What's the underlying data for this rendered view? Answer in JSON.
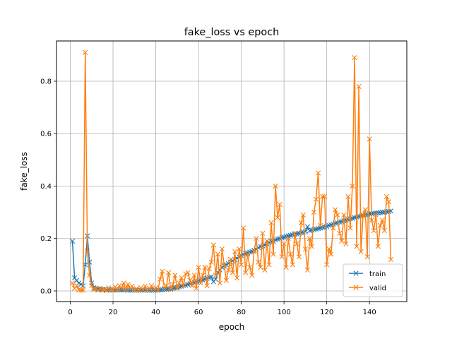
{
  "chart_data": {
    "type": "line",
    "title": "fake_loss vs epoch",
    "xlabel": "epoch",
    "ylabel": "fake_loss",
    "xlim": [
      -6.45,
      157.45
    ],
    "ylim": [
      -0.0405,
      0.9535
    ],
    "xticks": [
      0,
      20,
      40,
      60,
      80,
      100,
      120,
      140
    ],
    "yticks": [
      0.0,
      0.2,
      0.4,
      0.6,
      0.8
    ],
    "ytick_labels": [
      "0.0",
      "0.2",
      "0.4",
      "0.6",
      "0.8"
    ],
    "grid": true,
    "legend_position": "lower-right",
    "marker": "x",
    "series": [
      {
        "name": "train",
        "color": "#1f77b4",
        "x": [
          1,
          2,
          3,
          4,
          5,
          6,
          7,
          8,
          9,
          10,
          11,
          12,
          13,
          14,
          15,
          16,
          17,
          18,
          19,
          20,
          21,
          22,
          23,
          24,
          25,
          26,
          27,
          28,
          29,
          30,
          31,
          32,
          33,
          34,
          35,
          36,
          37,
          38,
          39,
          40,
          41,
          42,
          43,
          44,
          45,
          46,
          47,
          48,
          49,
          50,
          51,
          52,
          53,
          54,
          55,
          56,
          57,
          58,
          59,
          60,
          61,
          62,
          63,
          64,
          65,
          66,
          67,
          68,
          69,
          70,
          71,
          72,
          73,
          74,
          75,
          76,
          77,
          78,
          79,
          80,
          81,
          82,
          83,
          84,
          85,
          86,
          87,
          88,
          89,
          90,
          91,
          92,
          93,
          94,
          95,
          96,
          97,
          98,
          99,
          100,
          101,
          102,
          103,
          104,
          105,
          106,
          107,
          108,
          109,
          110,
          111,
          112,
          113,
          114,
          115,
          116,
          117,
          118,
          119,
          120,
          121,
          122,
          123,
          124,
          125,
          126,
          127,
          128,
          129,
          130,
          131,
          132,
          133,
          134,
          135,
          136,
          137,
          138,
          139,
          140,
          141,
          142,
          143,
          144,
          145,
          146,
          147,
          148,
          149,
          150
        ],
        "y": [
          0.19,
          0.05,
          0.04,
          0.03,
          0.025,
          0.02,
          0.1,
          0.21,
          0.11,
          0.03,
          0.012,
          0.01,
          0.008,
          0.007,
          0.006,
          0.006,
          0.005,
          0.005,
          0.005,
          0.005,
          0.004,
          0.004,
          0.004,
          0.004,
          0.003,
          0.004,
          0.003,
          0.003,
          0.003,
          0.003,
          0.003,
          0.003,
          0.003,
          0.003,
          0.003,
          0.003,
          0.003,
          0.003,
          0.003,
          0.003,
          0.004,
          0.004,
          0.005,
          0.006,
          0.007,
          0.008,
          0.009,
          0.01,
          0.012,
          0.014,
          0.016,
          0.018,
          0.02,
          0.022,
          0.025,
          0.027,
          0.03,
          0.032,
          0.035,
          0.037,
          0.04,
          0.042,
          0.045,
          0.048,
          0.051,
          0.054,
          0.035,
          0.045,
          0.07,
          0.08,
          0.09,
          0.095,
          0.1,
          0.105,
          0.11,
          0.115,
          0.12,
          0.125,
          0.13,
          0.135,
          0.14,
          0.142,
          0.145,
          0.148,
          0.15,
          0.155,
          0.16,
          0.165,
          0.17,
          0.172,
          0.175,
          0.18,
          0.185,
          0.188,
          0.19,
          0.195,
          0.198,
          0.2,
          0.203,
          0.205,
          0.208,
          0.21,
          0.212,
          0.214,
          0.216,
          0.218,
          0.22,
          0.222,
          0.224,
          0.226,
          0.245,
          0.23,
          0.232,
          0.234,
          0.236,
          0.238,
          0.24,
          0.242,
          0.244,
          0.246,
          0.25,
          0.252,
          0.255,
          0.258,
          0.26,
          0.263,
          0.265,
          0.268,
          0.27,
          0.272,
          0.275,
          0.277,
          0.28,
          0.282,
          0.284,
          0.286,
          0.288,
          0.29,
          0.292,
          0.294,
          0.295,
          0.296,
          0.297,
          0.298,
          0.299,
          0.3,
          0.301,
          0.302,
          0.303,
          0.305
        ]
      },
      {
        "name": "valid",
        "color": "#ff7f0e",
        "x": [
          1,
          2,
          3,
          4,
          5,
          6,
          7,
          8,
          9,
          10,
          11,
          12,
          13,
          14,
          15,
          16,
          17,
          18,
          19,
          20,
          21,
          22,
          23,
          24,
          25,
          26,
          27,
          28,
          29,
          30,
          31,
          32,
          33,
          34,
          35,
          36,
          37,
          38,
          39,
          40,
          41,
          42,
          43,
          44,
          45,
          46,
          47,
          48,
          49,
          50,
          51,
          52,
          53,
          54,
          55,
          56,
          57,
          58,
          59,
          60,
          61,
          62,
          63,
          64,
          65,
          66,
          67,
          68,
          69,
          70,
          71,
          72,
          73,
          74,
          75,
          76,
          77,
          78,
          79,
          80,
          81,
          82,
          83,
          84,
          85,
          86,
          87,
          88,
          89,
          90,
          91,
          92,
          93,
          94,
          95,
          96,
          97,
          98,
          99,
          100,
          101,
          102,
          103,
          104,
          105,
          106,
          107,
          108,
          109,
          110,
          111,
          112,
          113,
          114,
          115,
          116,
          117,
          118,
          119,
          120,
          121,
          122,
          123,
          124,
          125,
          126,
          127,
          128,
          129,
          130,
          131,
          132,
          133,
          134,
          135,
          136,
          137,
          138,
          139,
          140,
          141,
          142,
          143,
          144,
          145,
          146,
          147,
          148,
          149,
          150
        ],
        "y": [
          0.03,
          0.01,
          0.02,
          0.005,
          0.003,
          0.002,
          0.91,
          0.15,
          0.06,
          0.02,
          0.005,
          0.008,
          0.003,
          0.01,
          0.002,
          0.005,
          0.001,
          0.012,
          0.004,
          0.002,
          0.015,
          0.003,
          0.02,
          0.01,
          0.03,
          0.005,
          0.025,
          0.01,
          0.018,
          0.003,
          0.008,
          0.002,
          0.012,
          0.005,
          0.018,
          0.003,
          0.01,
          0.02,
          0.006,
          0.012,
          0.002,
          0.045,
          0.075,
          0.01,
          0.02,
          0.07,
          0.005,
          0.025,
          0.06,
          0.01,
          0.03,
          0.05,
          0.02,
          0.065,
          0.07,
          0.04,
          0.02,
          0.06,
          0.01,
          0.09,
          0.03,
          0.06,
          0.09,
          0.02,
          0.085,
          0.11,
          0.175,
          0.06,
          0.14,
          0.03,
          0.16,
          0.1,
          0.04,
          0.08,
          0.12,
          0.07,
          0.15,
          0.05,
          0.16,
          0.1,
          0.24,
          0.07,
          0.14,
          0.09,
          0.06,
          0.15,
          0.2,
          0.11,
          0.09,
          0.22,
          0.08,
          0.19,
          0.1,
          0.26,
          0.14,
          0.4,
          0.28,
          0.33,
          0.13,
          0.18,
          0.09,
          0.2,
          0.14,
          0.1,
          0.22,
          0.18,
          0.13,
          0.26,
          0.29,
          0.16,
          0.08,
          0.2,
          0.17,
          0.3,
          0.35,
          0.45,
          0.25,
          0.36,
          0.36,
          0.1,
          0.16,
          0.14,
          0.24,
          0.31,
          0.29,
          0.22,
          0.19,
          0.29,
          0.18,
          0.36,
          0.24,
          0.4,
          0.89,
          0.17,
          0.78,
          0.15,
          0.29,
          0.31,
          0.13,
          0.58,
          0.27,
          0.23,
          0.29,
          0.17,
          0.25,
          0.27,
          0.23,
          0.36,
          0.34,
          0.12
        ]
      }
    ]
  }
}
